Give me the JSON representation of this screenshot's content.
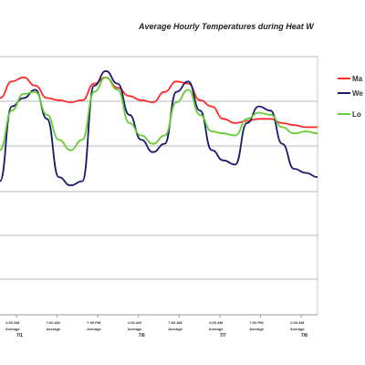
{
  "chart_data": {
    "type": "line",
    "title": "Average Hourly Temperatures during Heat W",
    "x_tick_labels": [
      {
        "time": "1:00 AM",
        "sub": "Average",
        "day": "7/1"
      },
      {
        "time": "7:00 AM",
        "sub": "Average",
        "day": ""
      },
      {
        "time": "7:00 PM",
        "sub": "Average",
        "day": ""
      },
      {
        "time": "1:00 AM",
        "sub": "Average",
        "day": "7/6"
      },
      {
        "time": "7:00 AM",
        "sub": "Average",
        "day": ""
      },
      {
        "time": "1:00 AM",
        "sub": "Average",
        "day": "7/7"
      },
      {
        "time": "7:00 PM",
        "sub": "Average",
        "day": ""
      },
      {
        "time": "1:00 AM",
        "sub": "Average",
        "day": "7/8"
      }
    ],
    "grid": true,
    "legend_position": "right",
    "series": [
      {
        "name": "Ma",
        "color": "#ff2a2a",
        "values": [
          80,
          88,
          90,
          86,
          80,
          79,
          78,
          79,
          87,
          90,
          85,
          81,
          79,
          78,
          83,
          88,
          87,
          79,
          76,
          70,
          68,
          69,
          70,
          70,
          68,
          67,
          66,
          66
        ]
      },
      {
        "name": "We",
        "color": "#1a1a6e",
        "values": [
          40,
          76,
          80,
          84,
          70,
          42,
          38,
          40,
          86,
          93,
          87,
          72,
          60,
          54,
          58,
          83,
          88,
          74,
          55,
          50,
          48,
          68,
          76,
          74,
          58,
          46,
          44,
          42
        ]
      },
      {
        "name": "Lo",
        "color": "#66cc33",
        "values": [
          55,
          74,
          82,
          83,
          72,
          60,
          55,
          60,
          83,
          90,
          84,
          68,
          62,
          58,
          62,
          78,
          84,
          72,
          64,
          63,
          62,
          70,
          73,
          72,
          66,
          63,
          64,
          63
        ]
      }
    ]
  }
}
